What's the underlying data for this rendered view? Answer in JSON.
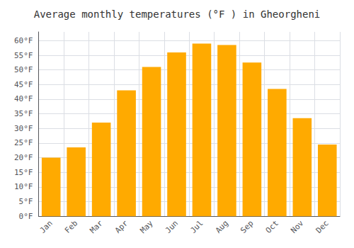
{
  "chart_data": {
    "type": "bar",
    "title": "Average monthly temperatures (°F ) in Gheorgheni",
    "categories": [
      "Jan",
      "Feb",
      "Mar",
      "Apr",
      "May",
      "Jun",
      "Jul",
      "Aug",
      "Sep",
      "Oct",
      "Nov",
      "Dec"
    ],
    "values": [
      20,
      23.5,
      32,
      43,
      51,
      56,
      59,
      58.5,
      52.5,
      43.5,
      33.5,
      24.5
    ],
    "color": "#FFAA00",
    "ylim": [
      0,
      63
    ],
    "yticks": [
      {
        "value": 0,
        "label": "0°F"
      },
      {
        "value": 5,
        "label": "5°F"
      },
      {
        "value": 10,
        "label": "10°F"
      },
      {
        "value": 15,
        "label": "15°F"
      },
      {
        "value": 20,
        "label": "20°F"
      },
      {
        "value": 25,
        "label": "25°F"
      },
      {
        "value": 30,
        "label": "30°F"
      },
      {
        "value": 35,
        "label": "35°F"
      },
      {
        "value": 40,
        "label": "40°F"
      },
      {
        "value": 45,
        "label": "45°F"
      },
      {
        "value": 50,
        "label": "50°F"
      },
      {
        "value": 55,
        "label": "55°F"
      },
      {
        "value": 60,
        "label": "60°F"
      }
    ],
    "grid": true
  }
}
